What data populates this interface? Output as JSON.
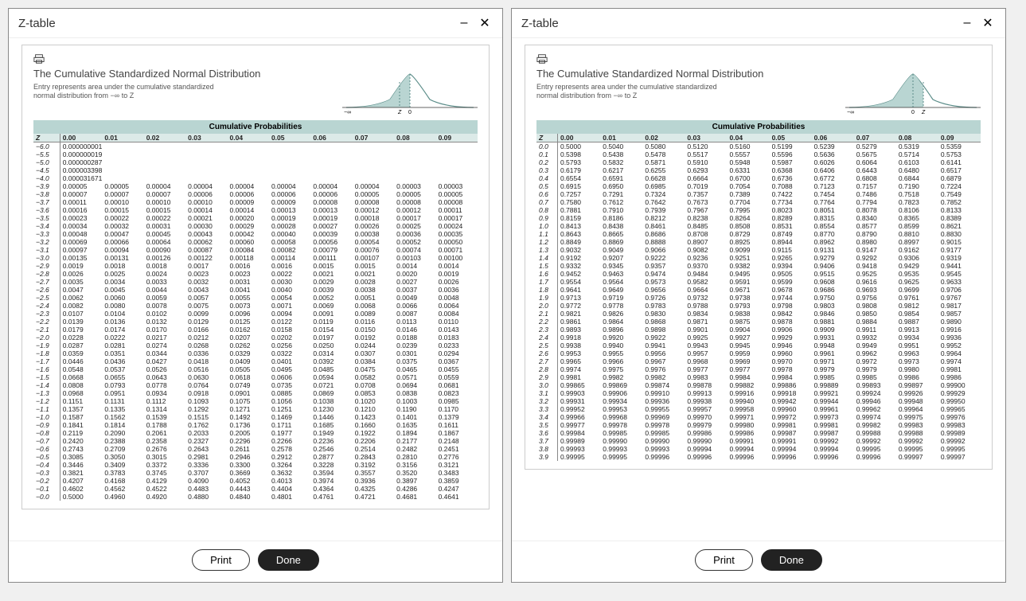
{
  "window_title": "Z-table",
  "buttons": {
    "print": "Print",
    "done": "Done"
  },
  "dist": {
    "title": "The Cumulative Standardized Normal Distribution",
    "sub1": "Entry represents area under the cumulative standardized",
    "sub2": "normal distribution from −∞ to Z"
  },
  "colors": {
    "header_bg": "#b9d5d2",
    "row_header_bg": "#dceae8",
    "curve_fill": "#b9d5d2",
    "curve_stroke": "#5a8c88"
  },
  "cum_header": "Cumulative Probabilities",
  "col_labels": [
    "Z",
    "0.00",
    "0.01",
    "0.02",
    "0.03",
    "0.04",
    "0.05",
    "0.06",
    "0.07",
    "0.08",
    "0.09"
  ],
  "left_special": [
    [
      "−6.0",
      "0.000000001"
    ],
    [
      "−5.5",
      "0.000000019"
    ],
    [
      "−5.0",
      "0.000000287"
    ],
    [
      "−4.5",
      "0.000003398"
    ],
    [
      "−4.0",
      "0.000031671"
    ]
  ],
  "left_rows": [
    [
      "−3.9",
      "0.00005",
      "0.00005",
      "0.00004",
      "0.00004",
      "0.00004",
      "0.00004",
      "0.00004",
      "0.00004",
      "0.00003",
      "0.00003"
    ],
    [
      "−3.8",
      "0.00007",
      "0.00007",
      "0.00007",
      "0.00006",
      "0.00006",
      "0.00006",
      "0.00006",
      "0.00005",
      "0.00005",
      "0.00005"
    ],
    [
      "−3.7",
      "0.00011",
      "0.00010",
      "0.00010",
      "0.00010",
      "0.00009",
      "0.00009",
      "0.00008",
      "0.00008",
      "0.00008",
      "0.00008"
    ],
    [
      "−3.6",
      "0.00016",
      "0.00015",
      "0.00015",
      "0.00014",
      "0.00014",
      "0.00013",
      "0.00013",
      "0.00012",
      "0.00012",
      "0.00011"
    ],
    [
      "−3.5",
      "0.00023",
      "0.00022",
      "0.00022",
      "0.00021",
      "0.00020",
      "0.00019",
      "0.00019",
      "0.00018",
      "0.00017",
      "0.00017"
    ],
    [
      "−3.4",
      "0.00034",
      "0.00032",
      "0.00031",
      "0.00030",
      "0.00029",
      "0.00028",
      "0.00027",
      "0.00026",
      "0.00025",
      "0.00024"
    ],
    [
      "−3.3",
      "0.00048",
      "0.00047",
      "0.00045",
      "0.00043",
      "0.00042",
      "0.00040",
      "0.00039",
      "0.00038",
      "0.00036",
      "0.00035"
    ],
    [
      "−3.2",
      "0.00069",
      "0.00066",
      "0.00064",
      "0.00062",
      "0.00060",
      "0.00058",
      "0.00056",
      "0.00054",
      "0.00052",
      "0.00050"
    ],
    [
      "−3.1",
      "0.00097",
      "0.00094",
      "0.00090",
      "0.00087",
      "0.00084",
      "0.00082",
      "0.00079",
      "0.00076",
      "0.00074",
      "0.00071"
    ],
    [
      "−3.0",
      "0.00135",
      "0.00131",
      "0.00126",
      "0.00122",
      "0.00118",
      "0.00114",
      "0.00111",
      "0.00107",
      "0.00103",
      "0.00100"
    ],
    [
      "−2.9",
      "0.0019",
      "0.0018",
      "0.0018",
      "0.0017",
      "0.0016",
      "0.0016",
      "0.0015",
      "0.0015",
      "0.0014",
      "0.0014"
    ],
    [
      "−2.8",
      "0.0026",
      "0.0025",
      "0.0024",
      "0.0023",
      "0.0023",
      "0.0022",
      "0.0021",
      "0.0021",
      "0.0020",
      "0.0019"
    ],
    [
      "−2.7",
      "0.0035",
      "0.0034",
      "0.0033",
      "0.0032",
      "0.0031",
      "0.0030",
      "0.0029",
      "0.0028",
      "0.0027",
      "0.0026"
    ],
    [
      "−2.6",
      "0.0047",
      "0.0045",
      "0.0044",
      "0.0043",
      "0.0041",
      "0.0040",
      "0.0039",
      "0.0038",
      "0.0037",
      "0.0036"
    ],
    [
      "−2.5",
      "0.0062",
      "0.0060",
      "0.0059",
      "0.0057",
      "0.0055",
      "0.0054",
      "0.0052",
      "0.0051",
      "0.0049",
      "0.0048"
    ],
    [
      "−2.4",
      "0.0082",
      "0.0080",
      "0.0078",
      "0.0075",
      "0.0073",
      "0.0071",
      "0.0069",
      "0.0068",
      "0.0066",
      "0.0064"
    ],
    [
      "−2.3",
      "0.0107",
      "0.0104",
      "0.0102",
      "0.0099",
      "0.0096",
      "0.0094",
      "0.0091",
      "0.0089",
      "0.0087",
      "0.0084"
    ],
    [
      "−2.2",
      "0.0139",
      "0.0136",
      "0.0132",
      "0.0129",
      "0.0125",
      "0.0122",
      "0.0119",
      "0.0116",
      "0.0113",
      "0.0110"
    ],
    [
      "−2.1",
      "0.0179",
      "0.0174",
      "0.0170",
      "0.0166",
      "0.0162",
      "0.0158",
      "0.0154",
      "0.0150",
      "0.0146",
      "0.0143"
    ],
    [
      "−2.0",
      "0.0228",
      "0.0222",
      "0.0217",
      "0.0212",
      "0.0207",
      "0.0202",
      "0.0197",
      "0.0192",
      "0.0188",
      "0.0183"
    ],
    [
      "−1.9",
      "0.0287",
      "0.0281",
      "0.0274",
      "0.0268",
      "0.0262",
      "0.0256",
      "0.0250",
      "0.0244",
      "0.0239",
      "0.0233"
    ],
    [
      "−1.8",
      "0.0359",
      "0.0351",
      "0.0344",
      "0.0336",
      "0.0329",
      "0.0322",
      "0.0314",
      "0.0307",
      "0.0301",
      "0.0294"
    ],
    [
      "−1.7",
      "0.0446",
      "0.0436",
      "0.0427",
      "0.0418",
      "0.0409",
      "0.0401",
      "0.0392",
      "0.0384",
      "0.0375",
      "0.0367"
    ],
    [
      "−1.6",
      "0.0548",
      "0.0537",
      "0.0526",
      "0.0516",
      "0.0505",
      "0.0495",
      "0.0485",
      "0.0475",
      "0.0465",
      "0.0455"
    ],
    [
      "−1.5",
      "0.0668",
      "0.0655",
      "0.0643",
      "0.0630",
      "0.0618",
      "0.0606",
      "0.0594",
      "0.0582",
      "0.0571",
      "0.0559"
    ],
    [
      "−1.4",
      "0.0808",
      "0.0793",
      "0.0778",
      "0.0764",
      "0.0749",
      "0.0735",
      "0.0721",
      "0.0708",
      "0.0694",
      "0.0681"
    ],
    [
      "−1.3",
      "0.0968",
      "0.0951",
      "0.0934",
      "0.0918",
      "0.0901",
      "0.0885",
      "0.0869",
      "0.0853",
      "0.0838",
      "0.0823"
    ],
    [
      "−1.2",
      "0.1151",
      "0.1131",
      "0.1112",
      "0.1093",
      "0.1075",
      "0.1056",
      "0.1038",
      "0.1020",
      "0.1003",
      "0.0985"
    ],
    [
      "−1.1",
      "0.1357",
      "0.1335",
      "0.1314",
      "0.1292",
      "0.1271",
      "0.1251",
      "0.1230",
      "0.1210",
      "0.1190",
      "0.1170"
    ],
    [
      "−1.0",
      "0.1587",
      "0.1562",
      "0.1539",
      "0.1515",
      "0.1492",
      "0.1469",
      "0.1446",
      "0.1423",
      "0.1401",
      "0.1379"
    ],
    [
      "−0.9",
      "0.1841",
      "0.1814",
      "0.1788",
      "0.1762",
      "0.1736",
      "0.1711",
      "0.1685",
      "0.1660",
      "0.1635",
      "0.1611"
    ],
    [
      "−0.8",
      "0.2119",
      "0.2090",
      "0.2061",
      "0.2033",
      "0.2005",
      "0.1977",
      "0.1949",
      "0.1922",
      "0.1894",
      "0.1867"
    ],
    [
      "−0.7",
      "0.2420",
      "0.2388",
      "0.2358",
      "0.2327",
      "0.2296",
      "0.2266",
      "0.2236",
      "0.2206",
      "0.2177",
      "0.2148"
    ],
    [
      "−0.6",
      "0.2743",
      "0.2709",
      "0.2676",
      "0.2643",
      "0.2611",
      "0.2578",
      "0.2546",
      "0.2514",
      "0.2482",
      "0.2451"
    ],
    [
      "−0.5",
      "0.3085",
      "0.3050",
      "0.3015",
      "0.2981",
      "0.2946",
      "0.2912",
      "0.2877",
      "0.2843",
      "0.2810",
      "0.2776"
    ],
    [
      "−0.4",
      "0.3446",
      "0.3409",
      "0.3372",
      "0.3336",
      "0.3300",
      "0.3264",
      "0.3228",
      "0.3192",
      "0.3156",
      "0.3121"
    ],
    [
      "−0.3",
      "0.3821",
      "0.3783",
      "0.3745",
      "0.3707",
      "0.3669",
      "0.3632",
      "0.3594",
      "0.3557",
      "0.3520",
      "0.3483"
    ],
    [
      "−0.2",
      "0.4207",
      "0.4168",
      "0.4129",
      "0.4090",
      "0.4052",
      "0.4013",
      "0.3974",
      "0.3936",
      "0.3897",
      "0.3859"
    ],
    [
      "−0.1",
      "0.4602",
      "0.4562",
      "0.4522",
      "0.4483",
      "0.4443",
      "0.4404",
      "0.4364",
      "0.4325",
      "0.4286",
      "0.4247"
    ],
    [
      "−0.0",
      "0.5000",
      "0.4960",
      "0.4920",
      "0.4880",
      "0.4840",
      "0.4801",
      "0.4761",
      "0.4721",
      "0.4681",
      "0.4641"
    ]
  ],
  "right_rows": [
    [
      "0.0",
      "0.5000",
      "0.5040",
      "0.5080",
      "0.5120",
      "0.5160",
      "0.5199",
      "0.5239",
      "0.5279",
      "0.5319",
      "0.5359"
    ],
    [
      "0.1",
      "0.5398",
      "0.5438",
      "0.5478",
      "0.5517",
      "0.5557",
      "0.5596",
      "0.5636",
      "0.5675",
      "0.5714",
      "0.5753"
    ],
    [
      "0.2",
      "0.5793",
      "0.5832",
      "0.5871",
      "0.5910",
      "0.5948",
      "0.5987",
      "0.6026",
      "0.6064",
      "0.6103",
      "0.6141"
    ],
    [
      "0.3",
      "0.6179",
      "0.6217",
      "0.6255",
      "0.6293",
      "0.6331",
      "0.6368",
      "0.6406",
      "0.6443",
      "0.6480",
      "0.6517"
    ],
    [
      "0.4",
      "0.6554",
      "0.6591",
      "0.6628",
      "0.6664",
      "0.6700",
      "0.6736",
      "0.6772",
      "0.6808",
      "0.6844",
      "0.6879"
    ],
    [
      "0.5",
      "0.6915",
      "0.6950",
      "0.6985",
      "0.7019",
      "0.7054",
      "0.7088",
      "0.7123",
      "0.7157",
      "0.7190",
      "0.7224"
    ],
    [
      "0.6",
      "0.7257",
      "0.7291",
      "0.7324",
      "0.7357",
      "0.7389",
      "0.7422",
      "0.7454",
      "0.7486",
      "0.7518",
      "0.7549"
    ],
    [
      "0.7",
      "0.7580",
      "0.7612",
      "0.7642",
      "0.7673",
      "0.7704",
      "0.7734",
      "0.7764",
      "0.7794",
      "0.7823",
      "0.7852"
    ],
    [
      "0.8",
      "0.7881",
      "0.7910",
      "0.7939",
      "0.7967",
      "0.7995",
      "0.8023",
      "0.8051",
      "0.8078",
      "0.8106",
      "0.8133"
    ],
    [
      "0.9",
      "0.8159",
      "0.8186",
      "0.8212",
      "0.8238",
      "0.8264",
      "0.8289",
      "0.8315",
      "0.8340",
      "0.8365",
      "0.8389"
    ],
    [
      "1.0",
      "0.8413",
      "0.8438",
      "0.8461",
      "0.8485",
      "0.8508",
      "0.8531",
      "0.8554",
      "0.8577",
      "0.8599",
      "0.8621"
    ],
    [
      "1.1",
      "0.8643",
      "0.8665",
      "0.8686",
      "0.8708",
      "0.8729",
      "0.8749",
      "0.8770",
      "0.8790",
      "0.8810",
      "0.8830"
    ],
    [
      "1.2",
      "0.8849",
      "0.8869",
      "0.8888",
      "0.8907",
      "0.8925",
      "0.8944",
      "0.8962",
      "0.8980",
      "0.8997",
      "0.9015"
    ],
    [
      "1.3",
      "0.9032",
      "0.9049",
      "0.9066",
      "0.9082",
      "0.9099",
      "0.9115",
      "0.9131",
      "0.9147",
      "0.9162",
      "0.9177"
    ],
    [
      "1.4",
      "0.9192",
      "0.9207",
      "0.9222",
      "0.9236",
      "0.9251",
      "0.9265",
      "0.9279",
      "0.9292",
      "0.9306",
      "0.9319"
    ],
    [
      "1.5",
      "0.9332",
      "0.9345",
      "0.9357",
      "0.9370",
      "0.9382",
      "0.9394",
      "0.9406",
      "0.9418",
      "0.9429",
      "0.9441"
    ],
    [
      "1.6",
      "0.9452",
      "0.9463",
      "0.9474",
      "0.9484",
      "0.9495",
      "0.9505",
      "0.9515",
      "0.9525",
      "0.9535",
      "0.9545"
    ],
    [
      "1.7",
      "0.9554",
      "0.9564",
      "0.9573",
      "0.9582",
      "0.9591",
      "0.9599",
      "0.9608",
      "0.9616",
      "0.9625",
      "0.9633"
    ],
    [
      "1.8",
      "0.9641",
      "0.9649",
      "0.9656",
      "0.9664",
      "0.9671",
      "0.9678",
      "0.9686",
      "0.9693",
      "0.9699",
      "0.9706"
    ],
    [
      "1.9",
      "0.9713",
      "0.9719",
      "0.9726",
      "0.9732",
      "0.9738",
      "0.9744",
      "0.9750",
      "0.9756",
      "0.9761",
      "0.9767"
    ],
    [
      "2.0",
      "0.9772",
      "0.9778",
      "0.9783",
      "0.9788",
      "0.9793",
      "0.9798",
      "0.9803",
      "0.9808",
      "0.9812",
      "0.9817"
    ],
    [
      "2.1",
      "0.9821",
      "0.9826",
      "0.9830",
      "0.9834",
      "0.9838",
      "0.9842",
      "0.9846",
      "0.9850",
      "0.9854",
      "0.9857"
    ],
    [
      "2.2",
      "0.9861",
      "0.9864",
      "0.9868",
      "0.9871",
      "0.9875",
      "0.9878",
      "0.9881",
      "0.9884",
      "0.9887",
      "0.9890"
    ],
    [
      "2.3",
      "0.9893",
      "0.9896",
      "0.9898",
      "0.9901",
      "0.9904",
      "0.9906",
      "0.9909",
      "0.9911",
      "0.9913",
      "0.9916"
    ],
    [
      "2.4",
      "0.9918",
      "0.9920",
      "0.9922",
      "0.9925",
      "0.9927",
      "0.9929",
      "0.9931",
      "0.9932",
      "0.9934",
      "0.9936"
    ],
    [
      "2.5",
      "0.9938",
      "0.9940",
      "0.9941",
      "0.9943",
      "0.9945",
      "0.9946",
      "0.9948",
      "0.9949",
      "0.9951",
      "0.9952"
    ],
    [
      "2.6",
      "0.9953",
      "0.9955",
      "0.9956",
      "0.9957",
      "0.9959",
      "0.9960",
      "0.9961",
      "0.9962",
      "0.9963",
      "0.9964"
    ],
    [
      "2.7",
      "0.9965",
      "0.9966",
      "0.9967",
      "0.9968",
      "0.9969",
      "0.9970",
      "0.9971",
      "0.9972",
      "0.9973",
      "0.9974"
    ],
    [
      "2.8",
      "0.9974",
      "0.9975",
      "0.9976",
      "0.9977",
      "0.9977",
      "0.9978",
      "0.9979",
      "0.9979",
      "0.9980",
      "0.9981"
    ],
    [
      "2.9",
      "0.9981",
      "0.9982",
      "0.9982",
      "0.9983",
      "0.9984",
      "0.9984",
      "0.9985",
      "0.9985",
      "0.9986",
      "0.9986"
    ],
    [
      "3.0",
      "0.99865",
      "0.99869",
      "0.99874",
      "0.99878",
      "0.99882",
      "0.99886",
      "0.99889",
      "0.99893",
      "0.99897",
      "0.99900"
    ],
    [
      "3.1",
      "0.99903",
      "0.99906",
      "0.99910",
      "0.99913",
      "0.99916",
      "0.99918",
      "0.99921",
      "0.99924",
      "0.99926",
      "0.99929"
    ],
    [
      "3.2",
      "0.99931",
      "0.99934",
      "0.99936",
      "0.99938",
      "0.99940",
      "0.99942",
      "0.99944",
      "0.99946",
      "0.99948",
      "0.99950"
    ],
    [
      "3.3",
      "0.99952",
      "0.99953",
      "0.99955",
      "0.99957",
      "0.99958",
      "0.99960",
      "0.99961",
      "0.99962",
      "0.99964",
      "0.99965"
    ],
    [
      "3.4",
      "0.99966",
      "0.99968",
      "0.99969",
      "0.99970",
      "0.99971",
      "0.99972",
      "0.99973",
      "0.99974",
      "0.99975",
      "0.99976"
    ],
    [
      "3.5",
      "0.99977",
      "0.99978",
      "0.99978",
      "0.99979",
      "0.99980",
      "0.99981",
      "0.99981",
      "0.99982",
      "0.99983",
      "0.99983"
    ],
    [
      "3.6",
      "0.99984",
      "0.99985",
      "0.99985",
      "0.99986",
      "0.99986",
      "0.99987",
      "0.99987",
      "0.99988",
      "0.99988",
      "0.99989"
    ],
    [
      "3.7",
      "0.99989",
      "0.99990",
      "0.99990",
      "0.99990",
      "0.99991",
      "0.99991",
      "0.99992",
      "0.99992",
      "0.99992",
      "0.99992"
    ],
    [
      "3.8",
      "0.99993",
      "0.99993",
      "0.99993",
      "0.99994",
      "0.99994",
      "0.99994",
      "0.99994",
      "0.99995",
      "0.99995",
      "0.99995"
    ],
    [
      "3.9",
      "0.99995",
      "0.99995",
      "0.99996",
      "0.99996",
      "0.99996",
      "0.99996",
      "0.99996",
      "0.99996",
      "0.99997",
      "0.99997"
    ]
  ],
  "axis_labels": {
    "neg_inf": "−∞",
    "z": "Z",
    "zero": "0"
  }
}
